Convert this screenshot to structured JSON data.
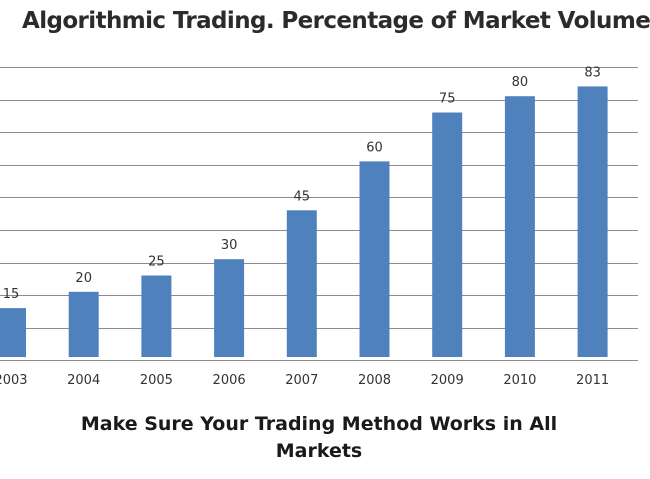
{
  "chart_data": {
    "type": "bar",
    "title": "Algorithmic Trading. Percentage of Market Volume",
    "categories": [
      "2003",
      "2004",
      "2005",
      "2006",
      "2007",
      "2008",
      "2009",
      "2010",
      "2011"
    ],
    "values": [
      15,
      20,
      25,
      30,
      45,
      60,
      75,
      80,
      83
    ],
    "data_labels": [
      "15",
      "20",
      "25",
      "30",
      "45",
      "60",
      "75",
      "80",
      "83"
    ],
    "xlabel": "",
    "ylabel": "",
    "ylim": [
      0,
      90
    ],
    "grid": true,
    "legend": "none",
    "bar_color": "#4f81bd",
    "gridline_color": "#8c8c8c"
  },
  "caption": {
    "line1": "Make Sure Your Trading Method Works in All",
    "line2": "Markets"
  }
}
